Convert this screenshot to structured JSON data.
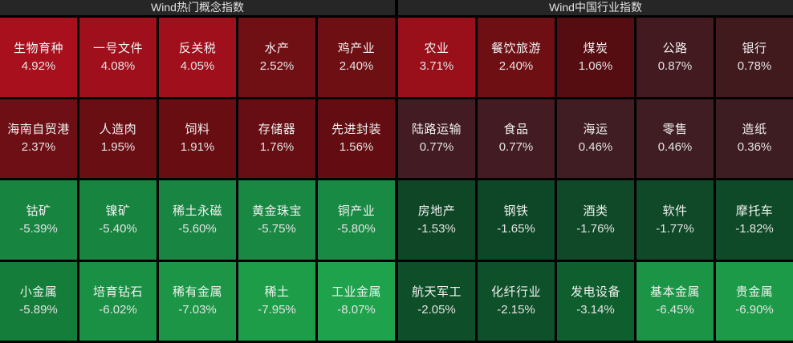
{
  "header": {
    "left_title": "Wind热门概念指数",
    "right_title": "Wind中国行业指数"
  },
  "colors": {
    "background": "#000000",
    "header_bar": "#262626",
    "header_text": "#e2e2e2",
    "cell_text": "#f1f1f1",
    "positive_strong": "#a8101e",
    "positive_weak": "#421a1f",
    "negative_strong": "#1fa24c",
    "negative_weak": "#0e4626"
  },
  "chart_data": {
    "type": "heatmap",
    "value_unit": "%",
    "color_rule": "positive=red shades (brighter = larger gain), negative=green shades (brighter = larger loss)",
    "sections": [
      {
        "title": "Wind热门概念指数",
        "rows": [
          [
            {
              "label": "生物育种",
              "value": 4.92,
              "text": "4.92%",
              "bg": "#a8101e"
            },
            {
              "label": "一号文件",
              "value": 4.08,
              "text": "4.08%",
              "bg": "#9f101c"
            },
            {
              "label": "反关税",
              "value": 4.05,
              "text": "4.05%",
              "bg": "#9f101c"
            },
            {
              "label": "水产",
              "value": 2.52,
              "text": "2.52%",
              "bg": "#701014"
            },
            {
              "label": "鸡产业",
              "value": 2.4,
              "text": "2.40%",
              "bg": "#6e0f14"
            }
          ],
          [
            {
              "label": "海南自贸港",
              "value": 2.37,
              "text": "2.37%",
              "bg": "#6d0f14"
            },
            {
              "label": "人造肉",
              "value": 1.95,
              "text": "1.95%",
              "bg": "#690e13"
            },
            {
              "label": "饲料",
              "value": 1.91,
              "text": "1.91%",
              "bg": "#680e13"
            },
            {
              "label": "存储器",
              "value": 1.76,
              "text": "1.76%",
              "bg": "#660e13"
            },
            {
              "label": "先进封装",
              "value": 1.56,
              "text": "1.56%",
              "bg": "#630d12"
            }
          ],
          [
            {
              "label": "钴矿",
              "value": -5.39,
              "text": "-5.39%",
              "bg": "#178440"
            },
            {
              "label": "镍矿",
              "value": -5.4,
              "text": "-5.40%",
              "bg": "#178440"
            },
            {
              "label": "稀土永磁",
              "value": -5.6,
              "text": "-5.60%",
              "bg": "#188642"
            },
            {
              "label": "黄金珠宝",
              "value": -5.75,
              "text": "-5.75%",
              "bg": "#198843"
            },
            {
              "label": "铜产业",
              "value": -5.8,
              "text": "-5.80%",
              "bg": "#198a43"
            }
          ],
          [
            {
              "label": "小金属",
              "value": -5.89,
              "text": "-5.89%",
              "bg": "#157d3a"
            },
            {
              "label": "培育钻石",
              "value": -6.02,
              "text": "-6.02%",
              "bg": "#1a9044"
            },
            {
              "label": "稀有金属",
              "value": -7.03,
              "text": "-7.03%",
              "bg": "#1c9646"
            },
            {
              "label": "稀土",
              "value": -7.95,
              "text": "-7.95%",
              "bg": "#1e9d49"
            },
            {
              "label": "工业金属",
              "value": -8.07,
              "text": "-8.07%",
              "bg": "#1fa24c"
            }
          ]
        ]
      },
      {
        "title": "Wind中国行业指数",
        "rows": [
          [
            {
              "label": "农业",
              "value": 3.71,
              "text": "3.71%",
              "bg": "#99101b"
            },
            {
              "label": "餐饮旅游",
              "value": 2.4,
              "text": "2.40%",
              "bg": "#6e0f14"
            },
            {
              "label": "煤炭",
              "value": 1.06,
              "text": "1.06%",
              "bg": "#560d12"
            },
            {
              "label": "公路",
              "value": 0.87,
              "text": "0.87%",
              "bg": "#421a1f"
            },
            {
              "label": "银行",
              "value": 0.78,
              "text": "0.78%",
              "bg": "#411a1e"
            }
          ],
          [
            {
              "label": "陆路运输",
              "value": 0.77,
              "text": "0.77%",
              "bg": "#421c22"
            },
            {
              "label": "食品",
              "value": 0.77,
              "text": "0.77%",
              "bg": "#421c22"
            },
            {
              "label": "海运",
              "value": 0.46,
              "text": "0.46%",
              "bg": "#3f1d22"
            },
            {
              "label": "零售",
              "value": 0.46,
              "text": "0.46%",
              "bg": "#3f1d22"
            },
            {
              "label": "造纸",
              "value": 0.36,
              "text": "0.36%",
              "bg": "#3e1d22"
            }
          ],
          [
            {
              "label": "房地产",
              "value": -1.53,
              "text": "-1.53%",
              "bg": "#0e4626"
            },
            {
              "label": "钢铁",
              "value": -1.65,
              "text": "-1.65%",
              "bg": "#0e4727"
            },
            {
              "label": "酒类",
              "value": -1.76,
              "text": "-1.76%",
              "bg": "#0f4928"
            },
            {
              "label": "软件",
              "value": -1.77,
              "text": "-1.77%",
              "bg": "#0f4928"
            },
            {
              "label": "摩托车",
              "value": -1.82,
              "text": "-1.82%",
              "bg": "#0f4a28"
            }
          ],
          [
            {
              "label": "航天军工",
              "value": -2.05,
              "text": "-2.05%",
              "bg": "#0e4f29"
            },
            {
              "label": "化纤行业",
              "value": -2.15,
              "text": "-2.15%",
              "bg": "#0e502a"
            },
            {
              "label": "发电设备",
              "value": -3.14,
              "text": "-3.14%",
              "bg": "#0f5e2e"
            },
            {
              "label": "基本金属",
              "value": -6.45,
              "text": "-6.45%",
              "bg": "#1b9545"
            },
            {
              "label": "贵金属",
              "value": -6.9,
              "text": "-6.90%",
              "bg": "#1c9a48"
            }
          ]
        ]
      }
    ]
  }
}
